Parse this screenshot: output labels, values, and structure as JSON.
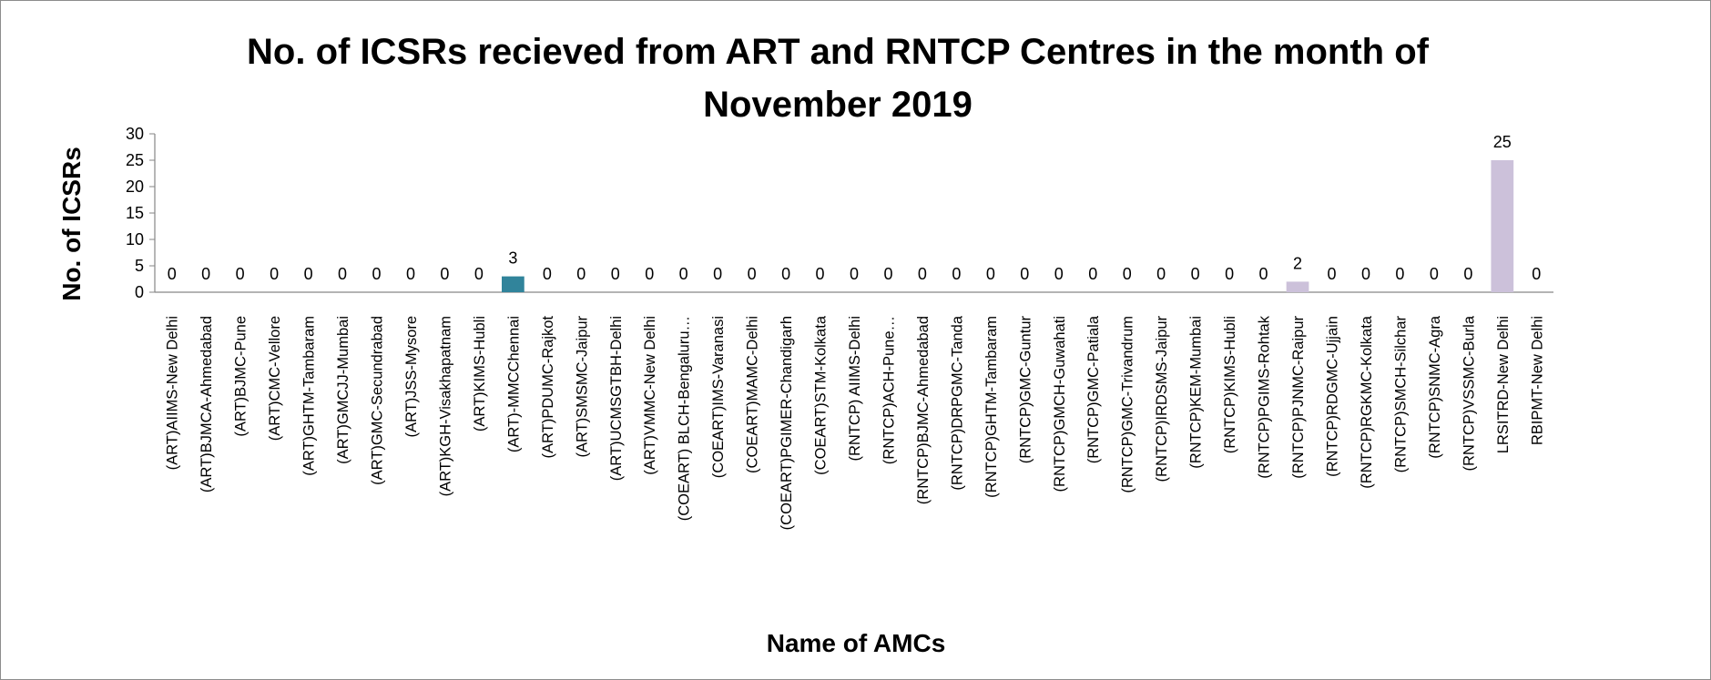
{
  "chart_data": {
    "type": "bar",
    "title": "No. of ICSRs recieved from ART and RNTCP Centres  in the month of November 2019",
    "x_label": "Name of AMCs",
    "y_label": "No. of ICSRs",
    "categories": [
      "(ART)AIIMS-New Delhi",
      "(ART)BJMCA-Ahmedabad",
      "(ART)BJMC-Pune",
      "(ART)CMC-Vellore",
      "(ART)GHTM-Tambaram",
      "(ART)GMCJJ-Mumbai",
      "(ART)GMC-Secundrabad",
      "(ART)JSS-Mysore",
      "(ART)KGH-Visakhapatnam",
      "(ART)KIMS-Hubli",
      "(ART)-MMCChennai",
      "(ART)PDUMC-Rajkot",
      "(ART)SMSMC-Jaipur",
      "(ART)UCMSGTBH-Delhi",
      "(ART)VMMC-New Delhi",
      "(COEART) BLCH-Bengaluru…",
      "(COEART)IMS-Varanasi",
      "(COEART)MAMC-Delhi",
      "(COEART)PGIMER-Chandigarh",
      "(COEART)STM-Kolkata",
      "(RNTCP) AIIMS-Delhi",
      "(RNTCP)ACH-Pune…",
      "(RNTCP)BJMC-Ahmedabad",
      "(RNTCP)DRPGMC-Tanda",
      "(RNTCP)GHTM-Tambaram",
      "(RNTCP)GMC-Guntur",
      "(RNTCP)GMCH-Guwahati",
      "(RNTCP)GMC-Patiala",
      "(RNTCP)GMC-Trivandrum",
      "(RNTCP)IRDSMS-Jaipur",
      "(RNTCP)KEM-Mumbai",
      "(RNTCP)KIMS-Hubli",
      "(RNTCP)PGIMS-Rohtak",
      "(RNTCP)PJNMC-Raipur",
      "(RNTCP)RDGMC-Ujjain",
      "(RNTCP)RGKMC-Kolkata",
      "(RNTCP)SMCH-Silchar",
      "(RNTCP)SNMC-Agra",
      "(RNTCP)VSSMC-Burla",
      "LRSITRD-New Delhi",
      "RBIPMT-New Delhi"
    ],
    "values": [
      0,
      0,
      0,
      0,
      0,
      0,
      0,
      0,
      0,
      0,
      3,
      0,
      0,
      0,
      0,
      0,
      0,
      0,
      0,
      0,
      0,
      0,
      0,
      0,
      0,
      0,
      0,
      0,
      0,
      0,
      0,
      0,
      0,
      2,
      0,
      0,
      0,
      0,
      0,
      25,
      0
    ],
    "color": "#4f81bd",
    "point_colors": {
      "10": "#31849b",
      "33": "#ccc1da",
      "39": "#ccc1da"
    },
    "ylim": [
      0,
      30
    ],
    "yticks": [
      0,
      5,
      10,
      15,
      20,
      25,
      30
    ],
    "grid": false
  }
}
